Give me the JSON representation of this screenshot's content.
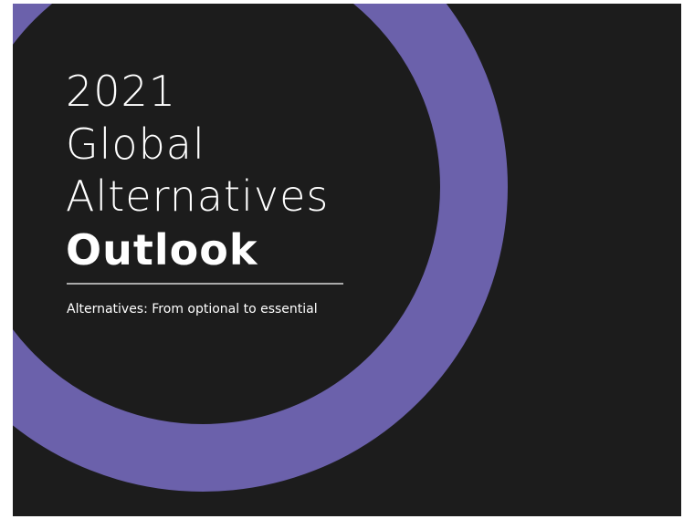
{
  "cover": {
    "title": {
      "lines": [
        "2021",
        "Global",
        "Alternatives"
      ],
      "emphasis": "Outlook"
    },
    "subtitle": "Alternatives: From optional to essential"
  }
}
